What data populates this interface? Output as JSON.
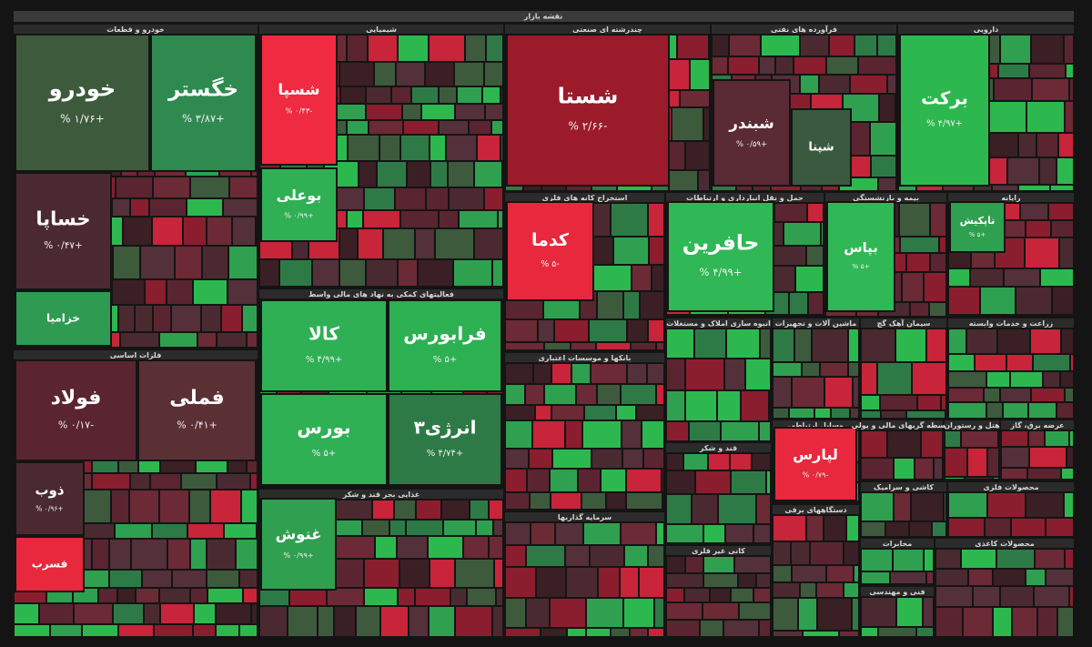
{
  "title": "نقشه بازار",
  "sectors": [
    {
      "title": "خودرو و قطعات",
      "tiles": [
        {
          "name": "خودرو",
          "change": "+۱/۷۶ %",
          "color": "#3d5a3d"
        },
        {
          "name": "خگستر",
          "change": "+۳/۸۷ %",
          "color": "#2f8a4f"
        },
        {
          "name": "خساپا",
          "change": "+۰/۴۷ %",
          "color": "#4a2a30"
        },
        {
          "name": "خزامیا",
          "color": "#2e9a52"
        }
      ]
    },
    {
      "title": "فلزات اساسی",
      "tiles": [
        {
          "name": "فولاد",
          "change": "-۰/۱۷ %",
          "color": "#5a2530"
        },
        {
          "name": "فملی",
          "change": "+۰/۴۱ %",
          "color": "#5a3035"
        },
        {
          "name": "ذوب",
          "change": "+۰/۹۶ %",
          "color": "#4a2a30"
        },
        {
          "name": "فسرب",
          "color": "#e8283c"
        }
      ]
    },
    {
      "title": "شیمیایی",
      "tiles": [
        {
          "name": "شسپا",
          "change": "-۰/۴۳ %",
          "color": "#f02a40"
        },
        {
          "name": "بوعلی",
          "change": "+۰/۹۹ %",
          "color": "#2fb055"
        }
      ]
    },
    {
      "title": "چندرشته ای صنعتی",
      "tiles": [
        {
          "name": "شستا",
          "change": "-۲/۶۶ %",
          "color": "#9b1b2a"
        }
      ]
    },
    {
      "title": "فرآورده های نفتی",
      "tiles": [
        {
          "name": "شبندر",
          "change": "+۰/۵۹ %",
          "color": "#5a2a35"
        },
        {
          "name": "شپنا",
          "color": "#3a5a40"
        }
      ]
    },
    {
      "title": "دارویی",
      "tiles": [
        {
          "name": "برکت",
          "change": "+۴/۹۷ %",
          "color": "#2db84f"
        }
      ]
    },
    {
      "title": "فعالیتهای کمکی به نهاد های مالی واسط",
      "tiles": [
        {
          "name": "کالا",
          "change": "+۴/۹۹ %",
          "color": "#2fb055"
        },
        {
          "name": "فرابورس",
          "change": "+۵ %",
          "color": "#2db052"
        },
        {
          "name": "بورس",
          "change": "+۵ %",
          "color": "#2fb055"
        },
        {
          "name": "انرژی۳",
          "change": "+۴/۷۴ %",
          "color": "#2e7a47"
        }
      ]
    },
    {
      "title": "غذایی بجز قند و شکر",
      "tiles": [
        {
          "name": "غنوش",
          "change": "+۰/۹۹ %",
          "color": "#2fa050"
        }
      ]
    },
    {
      "title": "استخراج کانه های فلزی",
      "tiles": [
        {
          "name": "کدما",
          "change": "-۵ %",
          "color": "#e8283c"
        }
      ]
    },
    {
      "title": "حمل و نقل انبارداری و ارتباطات",
      "tiles": [
        {
          "name": "حافرین",
          "change": "+۴/۹۹ %",
          "color": "#2fb855"
        }
      ]
    },
    {
      "title": "بیمه و بازنشستگی",
      "tiles": [
        {
          "name": "بپاس",
          "change": "+۵ %",
          "color": "#2fb855"
        }
      ]
    },
    {
      "title": "رایانه",
      "tiles": [
        {
          "name": "تاپکیش",
          "change": "+۵ %",
          "color": "#2fa050"
        }
      ]
    },
    {
      "title": "بانکها و موسسات اعتباری",
      "tiles": []
    },
    {
      "title": "سرمایه گذاریها",
      "tiles": []
    },
    {
      "title": "انبوه سازی املاک و مستغلات",
      "tiles": []
    },
    {
      "title": "ماشین آلات و تجهیزات",
      "tiles": []
    },
    {
      "title": "سیمان آهک گچ",
      "tiles": []
    },
    {
      "title": "زراعت و خدمات وابسته",
      "tiles": []
    },
    {
      "title": "قند و شکر",
      "tiles": []
    },
    {
      "title": "وسایل ارتباطی",
      "tiles": [
        {
          "name": "لپارس",
          "change": "-۰/۷۹ %",
          "color": "#e8283c"
        }
      ]
    },
    {
      "title": "واسطه گریهای مالی و پولی",
      "tiles": []
    },
    {
      "title": "هتل و رستوران",
      "tiles": []
    },
    {
      "title": "عرضه برق، گاز",
      "tiles": []
    },
    {
      "title": "کاشی و سرامیک",
      "tiles": []
    },
    {
      "title": "محصولات فلزی",
      "tiles": []
    },
    {
      "title": "دستگاههای برقی",
      "tiles": []
    },
    {
      "title": "کانی غیر فلزی",
      "tiles": []
    },
    {
      "title": "مخابرات",
      "tiles": []
    },
    {
      "title": "فنی و مهندسی",
      "tiles": []
    },
    {
      "title": "محصولات کاغذی",
      "tiles": []
    }
  ]
}
